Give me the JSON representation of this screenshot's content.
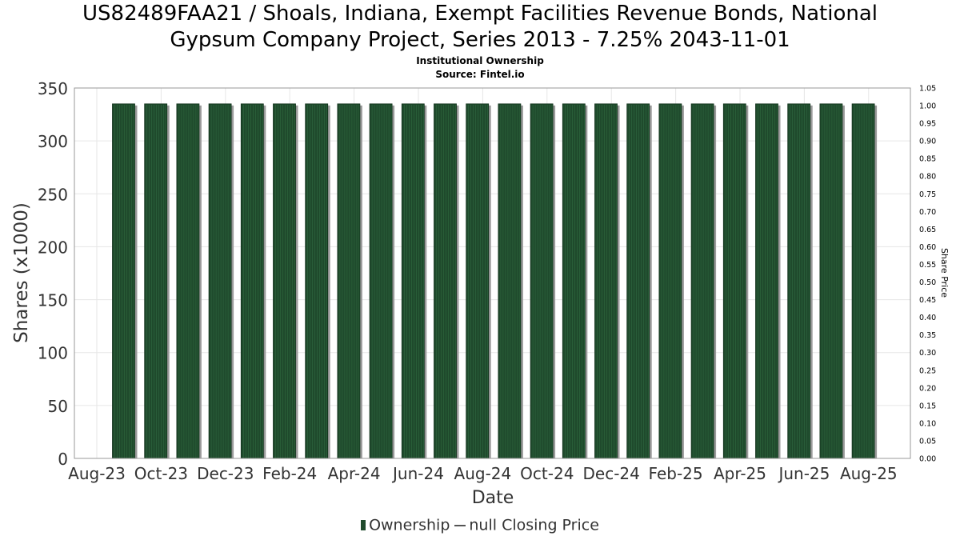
{
  "chart_data": {
    "type": "bar",
    "title": "US82489FAA21 / Shoals, Indiana, Exempt Facilities Revenue Bonds, National Gypsum Company Project, Series 2013 - 7.25% 2043-11-01",
    "title_lines": [
      "US82489FAA21 / Shoals, Indiana, Exempt Facilities Revenue Bonds, National",
      "Gypsum Company Project, Series 2013 - 7.25% 2043-11-01"
    ],
    "subtitle": "Institutional Ownership",
    "source": "Source: Fintel.io",
    "xlabel": "Date",
    "ylabel": "Shares (x1000)",
    "y2label": "Share Price",
    "ylim": [
      0,
      350
    ],
    "y2lim": [
      0,
      1.05
    ],
    "grid": true,
    "legend_position": "bottom",
    "y_ticks": [
      "0",
      "50",
      "100",
      "150",
      "200",
      "250",
      "300",
      "350"
    ],
    "y2_ticks": [
      "0.00",
      "0.05",
      "0.10",
      "0.15",
      "0.20",
      "0.25",
      "0.30",
      "0.35",
      "0.40",
      "0.45",
      "0.50",
      "0.55",
      "0.60",
      "0.65",
      "0.70",
      "0.75",
      "0.80",
      "0.85",
      "0.90",
      "0.95",
      "1.00",
      "1.05"
    ],
    "x_ticks": [
      "Aug-23",
      "Oct-23",
      "Dec-23",
      "Feb-24",
      "Apr-24",
      "Jun-24",
      "Aug-24",
      "Oct-24",
      "Dec-24",
      "Feb-25",
      "Apr-25",
      "Jun-25",
      "Aug-25"
    ],
    "series": [
      {
        "name": "Ownership",
        "color": "#1f4a2c",
        "x": [
          "2023-09",
          "2023-10",
          "2023-11",
          "2023-12",
          "2024-01",
          "2024-02",
          "2024-03",
          "2024-04",
          "2024-05",
          "2024-06",
          "2024-07",
          "2024-08",
          "2024-09",
          "2024-10",
          "2024-11",
          "2024-12",
          "2025-01",
          "2025-02",
          "2025-03",
          "2025-04",
          "2025-05",
          "2025-06",
          "2025-07",
          "2025-08"
        ],
        "values": [
          335,
          335,
          335,
          335,
          335,
          335,
          335,
          335,
          335,
          335,
          335,
          335,
          335,
          335,
          335,
          335,
          335,
          335,
          335,
          335,
          335,
          335,
          335,
          335
        ]
      },
      {
        "name": "null Closing Price",
        "color": "#555555",
        "values": []
      }
    ]
  }
}
